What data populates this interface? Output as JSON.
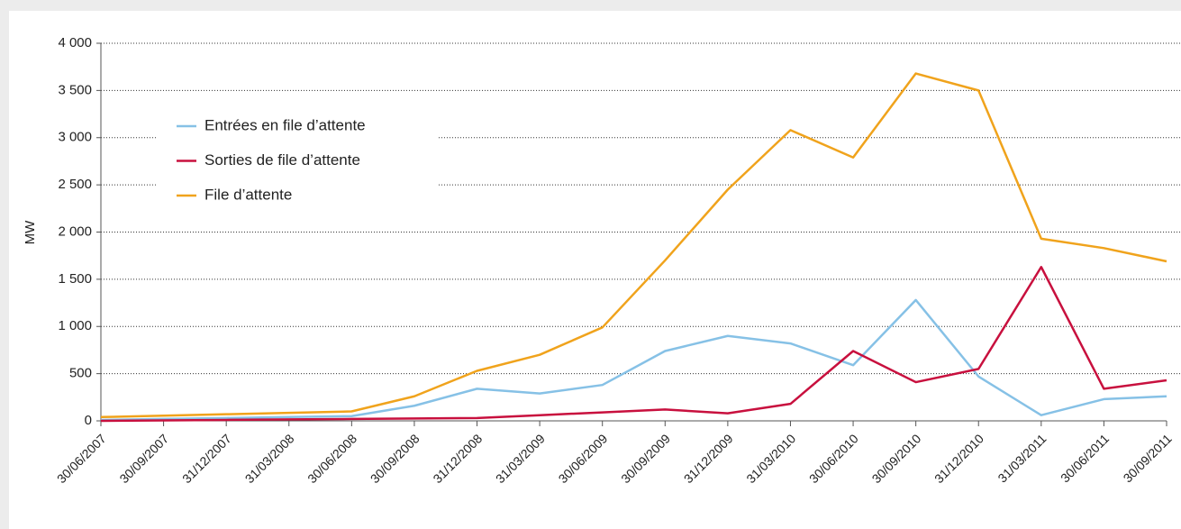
{
  "chart_data": {
    "type": "line",
    "ylabel": "MW",
    "categories": [
      "30/06/2007",
      "30/09/2007",
      "31/12/2007",
      "31/03/2008",
      "30/06/2008",
      "30/09/2008",
      "31/12/2008",
      "31/03/2009",
      "30/06/2009",
      "30/09/2009",
      "31/12/2009",
      "31/03/2010",
      "30/06/2010",
      "30/09/2010",
      "31/12/2010",
      "31/03/2011",
      "30/06/2011",
      "30/09/2011"
    ],
    "series": [
      {
        "name": "Entrées en file d’attente",
        "color": "#86c1e6",
        "values": [
          10,
          20,
          30,
          40,
          50,
          160,
          340,
          290,
          380,
          740,
          900,
          820,
          590,
          1280,
          470,
          60,
          230,
          260
        ]
      },
      {
        "name": "Sorties de file d’attente",
        "color": "#c8103e",
        "values": [
          0,
          5,
          10,
          15,
          20,
          25,
          30,
          60,
          90,
          120,
          80,
          180,
          740,
          410,
          550,
          1630,
          340,
          430
        ]
      },
      {
        "name": "File d’attente",
        "color": "#f0a31c",
        "values": [
          40,
          55,
          70,
          85,
          100,
          260,
          530,
          700,
          990,
          1700,
          2450,
          3080,
          2790,
          3680,
          3500,
          1930,
          1830,
          1690
        ]
      }
    ],
    "ylim": [
      0,
      4000
    ],
    "yticks": [
      0,
      500,
      {
        "value": 1000,
        "label": "1 000"
      },
      {
        "value": 1500,
        "label": "1 500"
      },
      {
        "value": 2000,
        "label": "2 000"
      },
      {
        "value": 2500,
        "label": "2 500"
      },
      {
        "value": 3000,
        "label": "3 000"
      },
      {
        "value": 3500,
        "label": "3 500"
      },
      {
        "value": 4000,
        "label": "4 000"
      }
    ],
    "grid": true,
    "legend": "upper-left"
  }
}
